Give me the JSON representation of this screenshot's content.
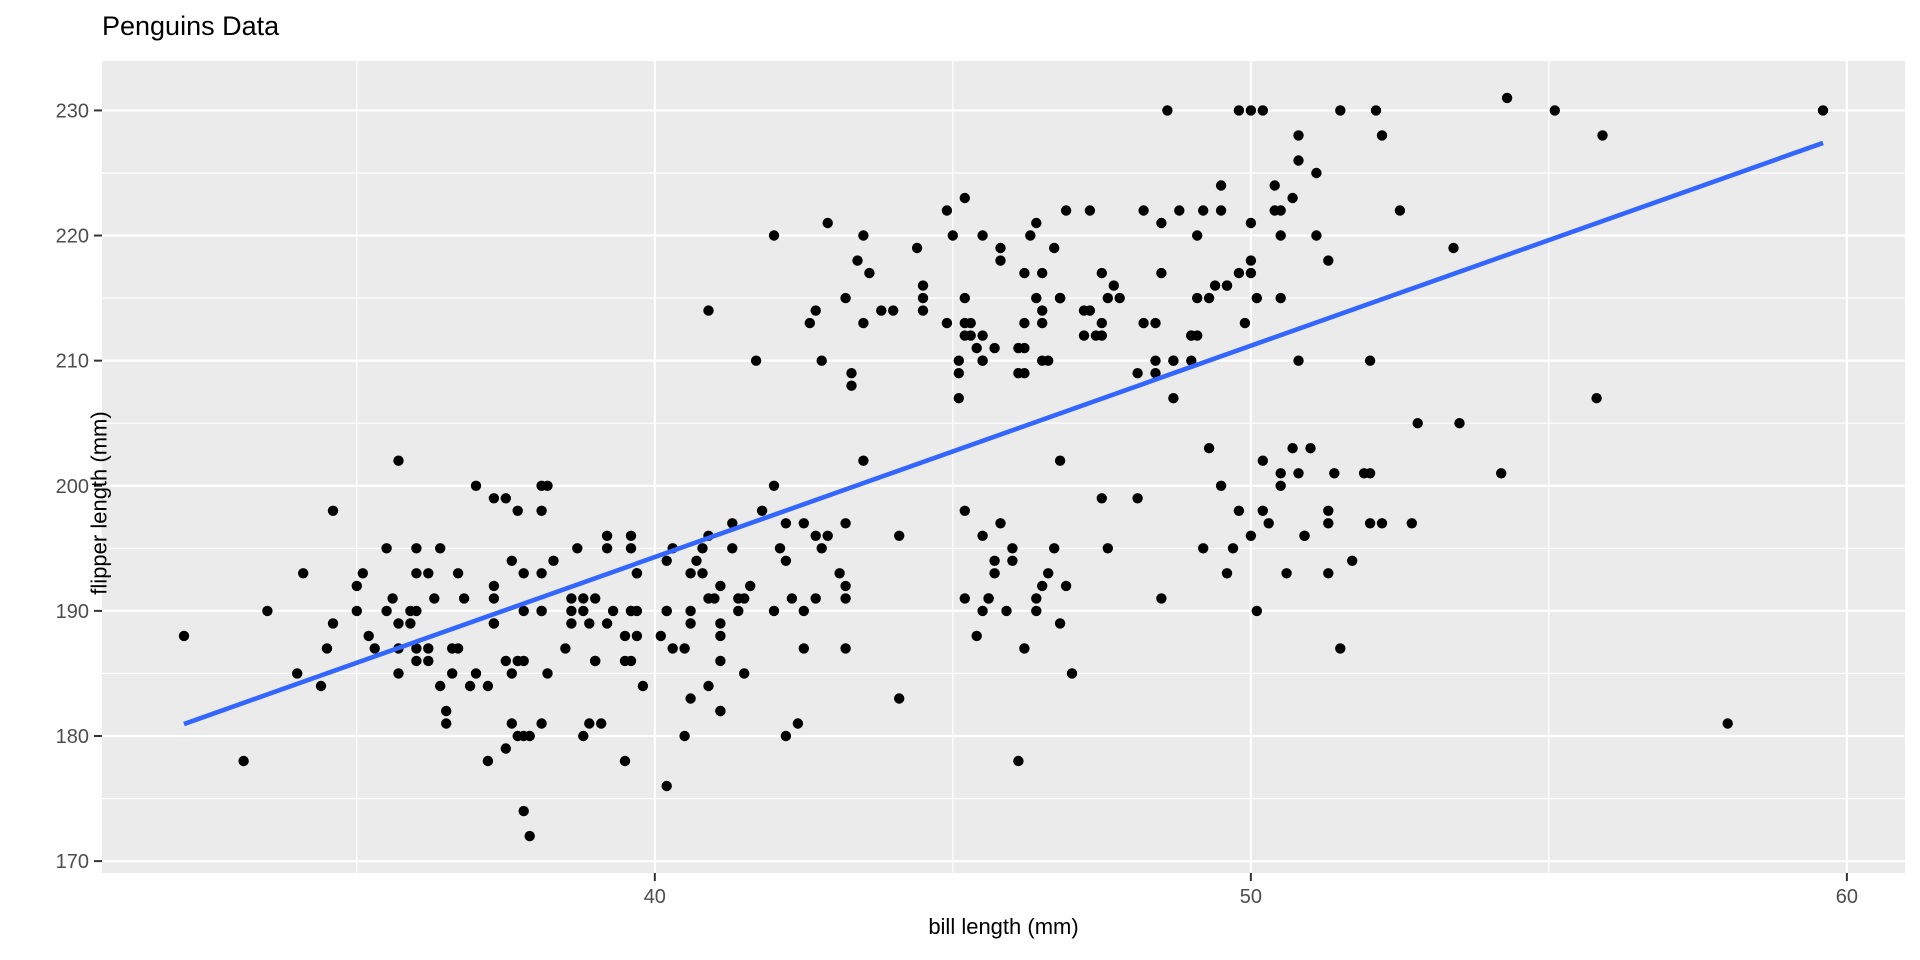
{
  "header": {
    "title": "Penguins Data"
  },
  "chart_data": {
    "type": "scatter",
    "title": "Penguins Data",
    "xlabel": "bill length (mm)",
    "ylabel": "flipper length (mm)",
    "xlim": [
      30.725,
      60.975
    ],
    "ylim": [
      169.05,
      233.95
    ],
    "x_major_ticks": [
      40,
      50,
      60
    ],
    "x_minor_gridlines": [
      35,
      45,
      55
    ],
    "y_major_ticks": [
      170,
      180,
      190,
      200,
      210,
      220,
      230
    ],
    "y_minor_gridlines": [
      175,
      185,
      195,
      205,
      215,
      225
    ],
    "grid": "white major and minor gridlines on gray panel",
    "legend_position": "none",
    "regression_line": {
      "intercept": 126.74,
      "slope": 1.689,
      "x_start": 32.1,
      "x_end": 59.6
    },
    "colors": {
      "figure_background": "#FFFFFF",
      "panel_background": "#EBEBEB",
      "gridline": "#FFFFFF",
      "point": "#000000",
      "smooth_line": "#3366FF",
      "tick_label": "#4D4D4D",
      "tick_mark": "#333333",
      "axis_title": "#000000"
    },
    "points": [
      [
        39.1,
        181
      ],
      [
        39.5,
        186
      ],
      [
        40.3,
        195
      ],
      [
        36.7,
        193
      ],
      [
        39.3,
        190
      ],
      [
        38.9,
        181
      ],
      [
        39.2,
        195
      ],
      [
        34.1,
        193
      ],
      [
        42.0,
        190
      ],
      [
        37.8,
        186
      ],
      [
        37.8,
        180
      ],
      [
        41.1,
        182
      ],
      [
        38.6,
        191
      ],
      [
        34.6,
        198
      ],
      [
        36.6,
        185
      ],
      [
        38.7,
        195
      ],
      [
        42.5,
        197
      ],
      [
        34.4,
        184
      ],
      [
        46.0,
        194
      ],
      [
        37.8,
        174
      ],
      [
        37.7,
        180
      ],
      [
        35.9,
        189
      ],
      [
        38.2,
        185
      ],
      [
        38.8,
        180
      ],
      [
        35.3,
        187
      ],
      [
        40.6,
        183
      ],
      [
        40.5,
        187
      ],
      [
        37.9,
        172
      ],
      [
        40.5,
        180
      ],
      [
        39.5,
        178
      ],
      [
        37.2,
        178
      ],
      [
        39.5,
        188
      ],
      [
        40.9,
        184
      ],
      [
        36.4,
        195
      ],
      [
        39.2,
        196
      ],
      [
        38.8,
        190
      ],
      [
        42.2,
        180
      ],
      [
        37.6,
        181
      ],
      [
        39.8,
        184
      ],
      [
        36.5,
        182
      ],
      [
        40.8,
        195
      ],
      [
        36.0,
        186
      ],
      [
        44.1,
        196
      ],
      [
        37.0,
        185
      ],
      [
        39.6,
        190
      ],
      [
        41.1,
        182
      ],
      [
        37.5,
        179
      ],
      [
        36.0,
        190
      ],
      [
        42.3,
        191
      ],
      [
        39.6,
        186
      ],
      [
        40.1,
        188
      ],
      [
        35.0,
        190
      ],
      [
        42.0,
        200
      ],
      [
        34.5,
        187
      ],
      [
        41.4,
        191
      ],
      [
        39.0,
        186
      ],
      [
        40.6,
        193
      ],
      [
        36.5,
        181
      ],
      [
        37.6,
        194
      ],
      [
        35.7,
        185
      ],
      [
        41.3,
        195
      ],
      [
        37.6,
        185
      ],
      [
        41.1,
        192
      ],
      [
        36.4,
        184
      ],
      [
        41.6,
        192
      ],
      [
        35.5,
        195
      ],
      [
        41.1,
        188
      ],
      [
        35.9,
        190
      ],
      [
        41.8,
        198
      ],
      [
        33.5,
        190
      ],
      [
        39.7,
        190
      ],
      [
        39.6,
        196
      ],
      [
        45.8,
        197
      ],
      [
        35.5,
        190
      ],
      [
        42.8,
        195
      ],
      [
        40.9,
        191
      ],
      [
        37.2,
        184
      ],
      [
        36.2,
        187
      ],
      [
        42.1,
        195
      ],
      [
        34.6,
        189
      ],
      [
        42.9,
        196
      ],
      [
        36.7,
        187
      ],
      [
        35.1,
        193
      ],
      [
        37.3,
        191
      ],
      [
        41.3,
        197
      ],
      [
        36.3,
        191
      ],
      [
        36.9,
        184
      ],
      [
        38.3,
        194
      ],
      [
        38.9,
        189
      ],
      [
        35.7,
        189
      ],
      [
        41.1,
        189
      ],
      [
        34.0,
        185
      ],
      [
        39.6,
        195
      ],
      [
        36.2,
        186
      ],
      [
        40.8,
        193
      ],
      [
        38.1,
        190
      ],
      [
        40.3,
        187
      ],
      [
        33.1,
        178
      ],
      [
        43.2,
        197
      ],
      [
        35.0,
        192
      ],
      [
        41.0,
        191
      ],
      [
        37.7,
        186
      ],
      [
        37.8,
        193
      ],
      [
        37.9,
        180
      ],
      [
        39.7,
        188
      ],
      [
        38.6,
        190
      ],
      [
        38.2,
        200
      ],
      [
        38.1,
        200
      ],
      [
        43.2,
        191
      ],
      [
        38.1,
        190
      ],
      [
        45.6,
        191
      ],
      [
        39.7,
        193
      ],
      [
        42.2,
        194
      ],
      [
        39.6,
        190
      ],
      [
        42.7,
        191
      ],
      [
        38.6,
        189
      ],
      [
        37.3,
        189
      ],
      [
        35.7,
        187
      ],
      [
        41.1,
        186
      ],
      [
        36.2,
        193
      ],
      [
        37.7,
        198
      ],
      [
        40.2,
        194
      ],
      [
        41.4,
        190
      ],
      [
        35.2,
        188
      ],
      [
        40.6,
        190
      ],
      [
        38.8,
        191
      ],
      [
        41.5,
        185
      ],
      [
        39.0,
        191
      ],
      [
        44.1,
        183
      ],
      [
        38.5,
        187
      ],
      [
        43.1,
        193
      ],
      [
        36.8,
        191
      ],
      [
        37.5,
        186
      ],
      [
        38.1,
        193
      ],
      [
        40.2,
        176
      ],
      [
        35.6,
        191
      ],
      [
        40.2,
        190
      ],
      [
        37.0,
        200
      ],
      [
        39.7,
        193
      ],
      [
        40.2,
        190
      ],
      [
        40.6,
        189
      ],
      [
        32.1,
        188
      ],
      [
        40.7,
        194
      ],
      [
        37.3,
        189
      ],
      [
        39.0,
        186
      ],
      [
        39.2,
        189
      ],
      [
        36.6,
        187
      ],
      [
        36.0,
        187
      ],
      [
        37.8,
        190
      ],
      [
        36.0,
        193
      ],
      [
        41.5,
        191
      ],
      [
        38.1,
        181
      ],
      [
        37.3,
        199
      ],
      [
        37.5,
        199
      ],
      [
        38.1,
        198
      ],
      [
        35.7,
        202
      ],
      [
        37.3,
        192
      ],
      [
        36.0,
        195
      ],
      [
        42.2,
        197
      ],
      [
        42.7,
        196
      ],
      [
        43.2,
        192
      ],
      [
        45.5,
        196
      ],
      [
        46.8,
        189
      ],
      [
        46.1,
        211
      ],
      [
        50.0,
        230
      ],
      [
        48.7,
        210
      ],
      [
        50.0,
        218
      ],
      [
        47.6,
        215
      ],
      [
        46.5,
        210
      ],
      [
        45.4,
        211
      ],
      [
        46.7,
        219
      ],
      [
        43.3,
        209
      ],
      [
        46.8,
        215
      ],
      [
        40.9,
        214
      ],
      [
        49.0,
        212
      ],
      [
        45.5,
        210
      ],
      [
        48.4,
        210
      ],
      [
        45.8,
        218
      ],
      [
        49.3,
        215
      ],
      [
        42.0,
        220
      ],
      [
        49.2,
        222
      ],
      [
        46.2,
        209
      ],
      [
        48.7,
        207
      ],
      [
        50.2,
        230
      ],
      [
        45.1,
        207
      ],
      [
        46.5,
        217
      ],
      [
        46.3,
        220
      ],
      [
        42.9,
        221
      ],
      [
        46.1,
        209
      ],
      [
        44.5,
        216
      ],
      [
        47.8,
        215
      ],
      [
        48.2,
        213
      ],
      [
        50.0,
        217
      ],
      [
        47.3,
        214
      ],
      [
        42.8,
        210
      ],
      [
        45.1,
        210
      ],
      [
        59.6,
        230
      ],
      [
        49.1,
        212
      ],
      [
        48.4,
        213
      ],
      [
        42.6,
        213
      ],
      [
        44.4,
        219
      ],
      [
        44.0,
        214
      ],
      [
        48.7,
        210
      ],
      [
        42.7,
        214
      ],
      [
        49.6,
        216
      ],
      [
        45.3,
        213
      ],
      [
        49.6,
        216
      ],
      [
        50.5,
        215
      ],
      [
        43.6,
        217
      ],
      [
        45.5,
        210
      ],
      [
        50.5,
        220
      ],
      [
        44.9,
        222
      ],
      [
        45.2,
        223
      ],
      [
        46.6,
        210
      ],
      [
        48.5,
        221
      ],
      [
        45.1,
        209
      ],
      [
        50.1,
        215
      ],
      [
        46.5,
        213
      ],
      [
        45.0,
        220
      ],
      [
        43.8,
        214
      ],
      [
        45.5,
        220
      ],
      [
        43.2,
        215
      ],
      [
        50.4,
        222
      ],
      [
        45.3,
        212
      ],
      [
        46.2,
        213
      ],
      [
        45.7,
        211
      ],
      [
        54.3,
        231
      ],
      [
        45.8,
        219
      ],
      [
        49.8,
        217
      ],
      [
        46.2,
        211
      ],
      [
        49.5,
        222
      ],
      [
        43.5,
        220
      ],
      [
        50.7,
        223
      ],
      [
        47.7,
        216
      ],
      [
        46.4,
        221
      ],
      [
        48.2,
        222
      ],
      [
        46.5,
        214
      ],
      [
        46.4,
        215
      ],
      [
        48.6,
        230
      ],
      [
        47.5,
        212
      ],
      [
        51.1,
        220
      ],
      [
        45.2,
        213
      ],
      [
        45.2,
        215
      ],
      [
        49.1,
        220
      ],
      [
        52.5,
        222
      ],
      [
        47.4,
        212
      ],
      [
        50.0,
        221
      ],
      [
        44.9,
        213
      ],
      [
        50.8,
        228
      ],
      [
        43.4,
        218
      ],
      [
        51.3,
        218
      ],
      [
        47.5,
        213
      ],
      [
        52.1,
        230
      ],
      [
        47.5,
        217
      ],
      [
        52.2,
        228
      ],
      [
        45.5,
        212
      ],
      [
        49.5,
        224
      ],
      [
        44.5,
        215
      ],
      [
        50.8,
        226
      ],
      [
        49.4,
        216
      ],
      [
        46.9,
        222
      ],
      [
        48.4,
        209
      ],
      [
        51.1,
        225
      ],
      [
        48.5,
        217
      ],
      [
        55.9,
        228
      ],
      [
        47.2,
        214
      ],
      [
        49.1,
        215
      ],
      [
        47.3,
        222
      ],
      [
        46.8,
        215
      ],
      [
        41.7,
        210
      ],
      [
        53.4,
        219
      ],
      [
        43.3,
        208
      ],
      [
        48.1,
        209
      ],
      [
        50.5,
        222
      ],
      [
        49.8,
        230
      ],
      [
        43.5,
        213
      ],
      [
        51.5,
        230
      ],
      [
        46.2,
        217
      ],
      [
        55.1,
        230
      ],
      [
        44.5,
        214
      ],
      [
        48.8,
        222
      ],
      [
        47.2,
        212
      ],
      [
        46.8,
        215
      ],
      [
        50.4,
        224
      ],
      [
        45.2,
        212
      ],
      [
        49.9,
        213
      ],
      [
        46.5,
        192
      ],
      [
        50.0,
        196
      ],
      [
        51.3,
        193
      ],
      [
        45.4,
        188
      ],
      [
        52.7,
        197
      ],
      [
        45.2,
        198
      ],
      [
        46.1,
        178
      ],
      [
        51.3,
        197
      ],
      [
        46.0,
        195
      ],
      [
        51.3,
        198
      ],
      [
        46.6,
        193
      ],
      [
        51.7,
        194
      ],
      [
        47.0,
        185
      ],
      [
        52.0,
        201
      ],
      [
        45.9,
        190
      ],
      [
        50.5,
        201
      ],
      [
        50.3,
        197
      ],
      [
        58.0,
        181
      ],
      [
        46.4,
        190
      ],
      [
        49.2,
        195
      ],
      [
        42.4,
        181
      ],
      [
        48.5,
        191
      ],
      [
        43.2,
        187
      ],
      [
        50.6,
        193
      ],
      [
        46.7,
        195
      ],
      [
        52.0,
        197
      ],
      [
        50.5,
        200
      ],
      [
        49.5,
        200
      ],
      [
        46.4,
        191
      ],
      [
        52.8,
        205
      ],
      [
        40.9,
        196
      ],
      [
        54.2,
        201
      ],
      [
        42.5,
        190
      ],
      [
        51.0,
        203
      ],
      [
        49.7,
        195
      ],
      [
        47.5,
        199
      ],
      [
        47.6,
        195
      ],
      [
        52.0,
        210
      ],
      [
        46.9,
        192
      ],
      [
        53.5,
        205
      ],
      [
        49.0,
        210
      ],
      [
        46.2,
        187
      ],
      [
        50.9,
        196
      ],
      [
        45.5,
        190
      ],
      [
        50.9,
        196
      ],
      [
        50.8,
        201
      ],
      [
        50.1,
        190
      ],
      [
        49.0,
        212
      ],
      [
        51.5,
        187
      ],
      [
        49.8,
        198
      ],
      [
        48.1,
        199
      ],
      [
        51.4,
        201
      ],
      [
        45.7,
        194
      ],
      [
        50.7,
        203
      ],
      [
        42.5,
        187
      ],
      [
        52.2,
        197
      ],
      [
        45.2,
        191
      ],
      [
        49.3,
        203
      ],
      [
        50.2,
        202
      ],
      [
        45.6,
        191
      ],
      [
        51.9,
        201
      ],
      [
        46.8,
        202
      ],
      [
        45.7,
        193
      ],
      [
        55.8,
        207
      ],
      [
        43.5,
        202
      ],
      [
        49.6,
        193
      ],
      [
        50.8,
        210
      ],
      [
        50.2,
        198
      ]
    ]
  }
}
